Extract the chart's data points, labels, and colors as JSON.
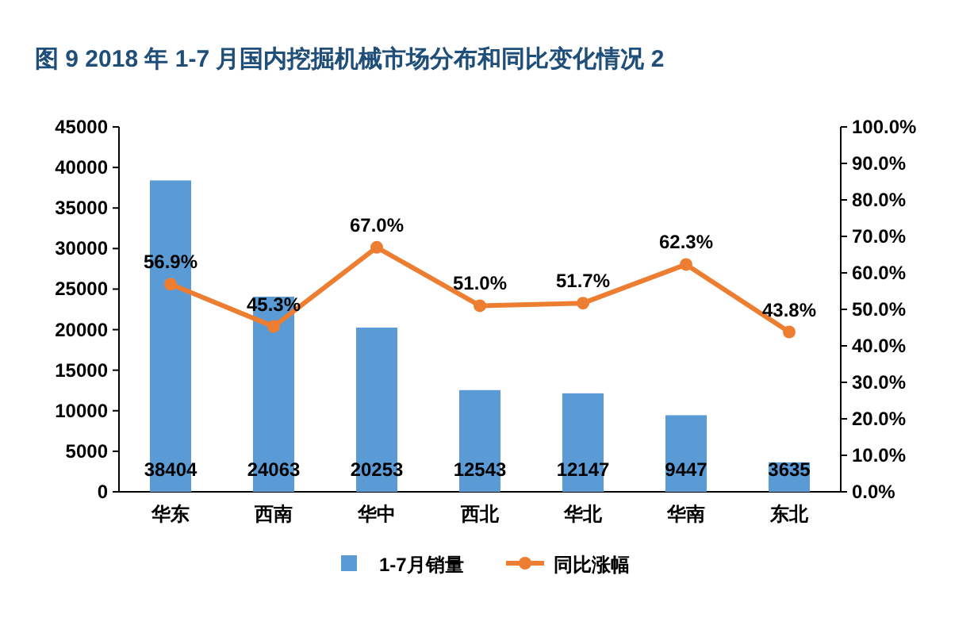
{
  "chart_data": {
    "type": "bar",
    "title": "图 9   2018 年 1-7 月国内挖掘机械市场分布和同比变化情况 2",
    "categories": [
      "华东",
      "西南",
      "华中",
      "西北",
      "华北",
      "华南",
      "东北"
    ],
    "series": [
      {
        "name": "1-7月销量",
        "color": "#5b9bd5",
        "values": [
          38404,
          24063,
          20253,
          12543,
          12147,
          9447,
          3635
        ],
        "value_labels": [
          "38404",
          "24063",
          "20253",
          "12543",
          "12147",
          "9447",
          "3635"
        ]
      },
      {
        "name": "同比涨幅",
        "type": "line",
        "axis": "y2",
        "color": "#ed7d31",
        "marker": "circle",
        "values": [
          56.9,
          45.3,
          67.0,
          51.0,
          51.7,
          62.3,
          43.8
        ],
        "value_labels": [
          "56.9%",
          "45.3%",
          "67.0%",
          "51.0%",
          "51.7%",
          "62.3%",
          "43.8%"
        ]
      }
    ],
    "ylim": [
      0,
      45000
    ],
    "yticks": [
      0,
      5000,
      10000,
      15000,
      20000,
      25000,
      30000,
      35000,
      40000,
      45000
    ],
    "y2lim": [
      0,
      100
    ],
    "y2ticks": [
      {
        "value": 0,
        "label": "0.0%"
      },
      {
        "value": 10,
        "label": "10.0%"
      },
      {
        "value": 20,
        "label": "20.0%"
      },
      {
        "value": 30,
        "label": "30.0%"
      },
      {
        "value": 40,
        "label": "40.0%"
      },
      {
        "value": 50,
        "label": "50.0%"
      },
      {
        "value": 60,
        "label": "60.0%"
      },
      {
        "value": 70,
        "label": "70.0%"
      },
      {
        "value": 80,
        "label": "80.0%"
      },
      {
        "value": 90,
        "label": "90.0%"
      },
      {
        "value": 100,
        "label": "100.0%"
      }
    ],
    "legend": "bottom",
    "grid": false
  }
}
